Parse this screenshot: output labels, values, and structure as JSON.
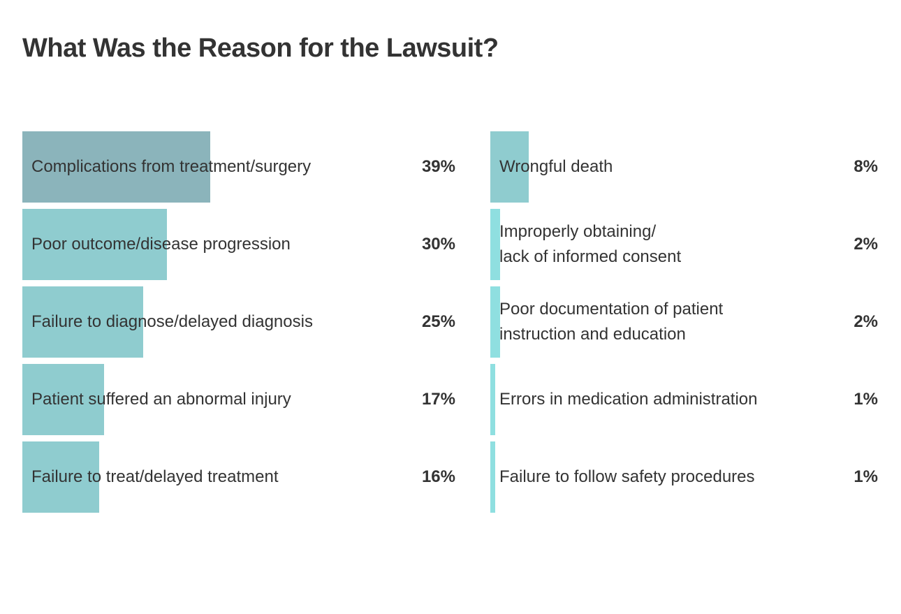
{
  "chart_data": {
    "type": "bar",
    "orientation": "horizontal",
    "title": "What Was the Reason for the Lawsuit?",
    "categories": [
      "Complications from treatment/surgery",
      "Poor outcome/disease progression",
      "Failure to diagnose/delayed diagnosis",
      "Patient suffered an abnormal injury",
      "Failure to treat/delayed treatment",
      "Wrongful death",
      "Improperly obtaining/\nlack of informed consent",
      "Poor documentation of patient\ninstruction and education",
      "Errors in medication administration",
      "Failure to follow safety procedures"
    ],
    "values": [
      39,
      30,
      25,
      17,
      16,
      8,
      2,
      2,
      1,
      1
    ],
    "value_labels": [
      "39%",
      "30%",
      "25%",
      "17%",
      "16%",
      "8%",
      "2%",
      "2%",
      "1%",
      "1%"
    ],
    "colors": [
      "#8bb4bb",
      "#8fcccf",
      "#8fcccf",
      "#8fcccf",
      "#8fcccf",
      "#8fcccf",
      "#8fdfe0",
      "#8fdfe0",
      "#8fdfe0",
      "#8fdfe0"
    ]
  }
}
